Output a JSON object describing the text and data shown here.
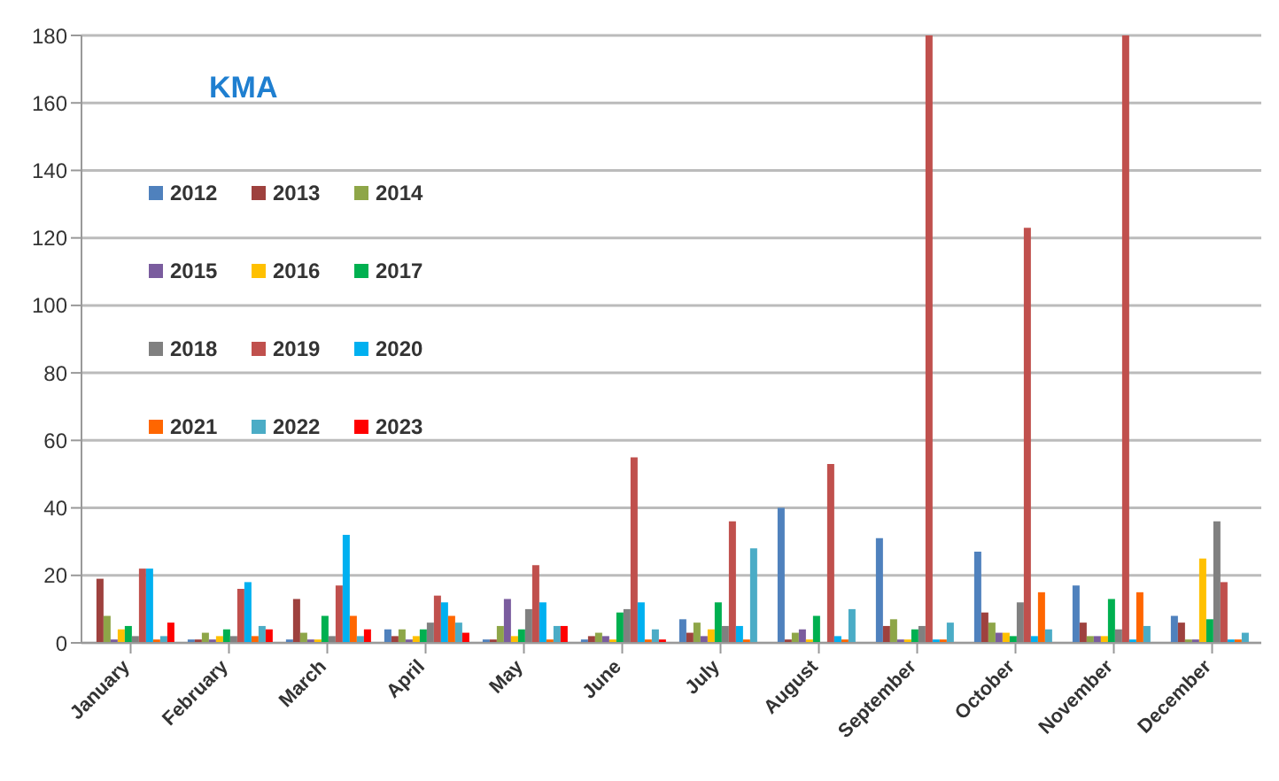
{
  "chart_data": {
    "type": "bar",
    "title": "KMA",
    "categories": [
      "January",
      "February",
      "March",
      "April",
      "May",
      "June",
      "July",
      "August",
      "September",
      "October",
      "November",
      "December"
    ],
    "series": [
      {
        "name": "2012",
        "color": "#4f81bd",
        "values": [
          0,
          1,
          1,
          4,
          1,
          1,
          7,
          40,
          31,
          27,
          17,
          8
        ]
      },
      {
        "name": "2013",
        "color": "#9e413e",
        "values": [
          19,
          1,
          13,
          2,
          1,
          2,
          3,
          1,
          5,
          9,
          6,
          6
        ]
      },
      {
        "name": "2014",
        "color": "#8ea648",
        "values": [
          8,
          3,
          3,
          4,
          5,
          3,
          6,
          3,
          7,
          6,
          2,
          1
        ]
      },
      {
        "name": "2015",
        "color": "#7a5c9e",
        "values": [
          1,
          1,
          1,
          1,
          13,
          2,
          2,
          4,
          1,
          3,
          2,
          1
        ]
      },
      {
        "name": "2016",
        "color": "#ffc000",
        "values": [
          4,
          2,
          1,
          2,
          2,
          1,
          4,
          1,
          1,
          3,
          2,
          25
        ]
      },
      {
        "name": "2017",
        "color": "#00b050",
        "values": [
          5,
          4,
          8,
          4,
          4,
          9,
          12,
          8,
          4,
          2,
          13,
          7
        ]
      },
      {
        "name": "2018",
        "color": "#808080",
        "values": [
          2,
          2,
          2,
          6,
          10,
          10,
          5,
          null,
          5,
          12,
          4,
          36
        ]
      },
      {
        "name": "2019",
        "color": "#c0504d",
        "values": [
          22,
          16,
          17,
          14,
          23,
          55,
          36,
          53,
          180,
          123,
          180,
          18
        ]
      },
      {
        "name": "2020",
        "color": "#00b0f0",
        "values": [
          22,
          18,
          32,
          12,
          12,
          12,
          5,
          2,
          1,
          2,
          1,
          1
        ]
      },
      {
        "name": "2021",
        "color": "#ff6600",
        "values": [
          1,
          2,
          8,
          8,
          1,
          1,
          1,
          1,
          1,
          15,
          15,
          1
        ]
      },
      {
        "name": "2022",
        "color": "#4bacc6",
        "values": [
          2,
          5,
          2,
          6,
          5,
          4,
          28,
          10,
          6,
          4,
          5,
          3
        ]
      },
      {
        "name": "2023",
        "color": "#ff0000",
        "values": [
          6,
          4,
          4,
          3,
          5,
          1,
          0,
          0,
          0,
          0,
          0,
          0
        ]
      }
    ],
    "ylim": [
      0,
      180
    ],
    "yticks": [
      0,
      20,
      40,
      60,
      80,
      100,
      120,
      140,
      160,
      180
    ],
    "grid": "y",
    "legend": "top left"
  }
}
